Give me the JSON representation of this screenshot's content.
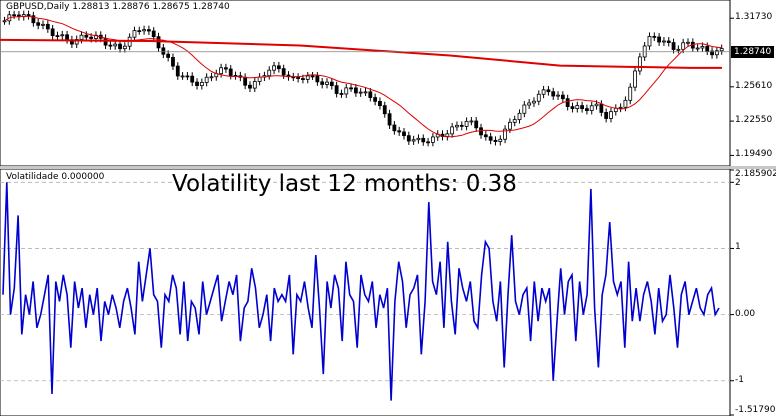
{
  "price_pane": {
    "title": "GBPUSD,Daily  1.28813 1.28876 1.28675 1.28740",
    "current_price": "1.28740",
    "axis_ticks": [
      {
        "label": "1.31730",
        "value": 1.3173
      },
      {
        "label": "1.28740",
        "value": 1.2874
      },
      {
        "label": "1.25610",
        "value": 1.2561
      },
      {
        "label": "1.22550",
        "value": 1.2255
      },
      {
        "label": "1.19490",
        "value": 1.1949
      }
    ],
    "colors": {
      "candle": "#000000",
      "ma_long": "#e00000",
      "ma_short": "#e00000",
      "price_line": "#808080"
    }
  },
  "indicator_pane": {
    "title": "Volatilidade 0.000000",
    "headline": "Volatility last 12 months: 0.38",
    "axis_ticks": [
      {
        "label": "2.185902",
        "value": 2.185902
      },
      {
        "label": "2",
        "value": 2
      },
      {
        "label": "1",
        "value": 1
      },
      {
        "label": "0.00",
        "value": 0
      },
      {
        "label": "-1",
        "value": -1
      },
      {
        "label": "-1.517903",
        "value": -1.517903
      }
    ],
    "line_color": "#0000d0",
    "series": [
      0.3,
      2,
      0,
      0.4,
      1.5,
      -0.3,
      0.3,
      0,
      0.5,
      -0.2,
      0,
      0.3,
      0.6,
      -1.2,
      0.5,
      0.2,
      0.6,
      0.3,
      -0.5,
      0.5,
      0.1,
      0.4,
      -0.2,
      0.3,
      0,
      0.4,
      -0.4,
      0.2,
      0,
      0.3,
      0.1,
      -0.2,
      0.2,
      0.4,
      0.1,
      -0.3,
      0.8,
      0.2,
      0.6,
      1,
      0.3,
      0.2,
      -0.5,
      0.3,
      0.2,
      0.6,
      0.4,
      -0.3,
      0.5,
      -0.4,
      0.2,
      0.1,
      -0.3,
      0.5,
      0,
      0.2,
      0.4,
      0.6,
      -0.1,
      0.2,
      0.5,
      0.3,
      0.6,
      -0.4,
      0.1,
      0.2,
      0.7,
      0.4,
      -0.2,
      0,
      0.3,
      -0.4,
      0.4,
      0.2,
      0.3,
      0.2,
      0.6,
      -0.6,
      0.3,
      0.2,
      0.5,
      0.1,
      -0.2,
      0.9,
      0.1,
      -0.9,
      0.5,
      0.1,
      0.6,
      0.4,
      -0.4,
      0.8,
      0.3,
      0.2,
      -0.5,
      0.6,
      0.3,
      0.2,
      0.5,
      -0.2,
      0.3,
      0.1,
      0.4,
      -1.3,
      0.2,
      0.8,
      0.5,
      -0.2,
      0.3,
      0.4,
      0.6,
      -0.6,
      0.2,
      1.7,
      0.5,
      0.3,
      0.8,
      -0.2,
      1.1,
      0.2,
      -0.3,
      0.7,
      0.4,
      0.2,
      0.5,
      -0.1,
      -0.2,
      0.6,
      1.1,
      1,
      0.2,
      -0.1,
      0.5,
      -0.8,
      0.3,
      1.2,
      0.2,
      0,
      0.3,
      0.4,
      -0.4,
      0.5,
      -0.1,
      0.4,
      0.2,
      0.4,
      -1,
      -0.1,
      0.7,
      0,
      0.5,
      0.6,
      -0.4,
      0.5,
      0,
      0.3,
      1.9,
      0.1,
      -0.8,
      0.3,
      0.6,
      1.4,
      0.5,
      0.3,
      0.5,
      -0.5,
      0.8,
      -0.1,
      0.4,
      -0.1,
      0.3,
      0.5,
      0.2,
      -0.3,
      0.4,
      -0.1,
      0,
      0.6,
      0.1,
      -0.5,
      0.3,
      0.5,
      0,
      0.2,
      0.4,
      0.1,
      0,
      0.3,
      0.4,
      0,
      0.1
    ]
  }
}
